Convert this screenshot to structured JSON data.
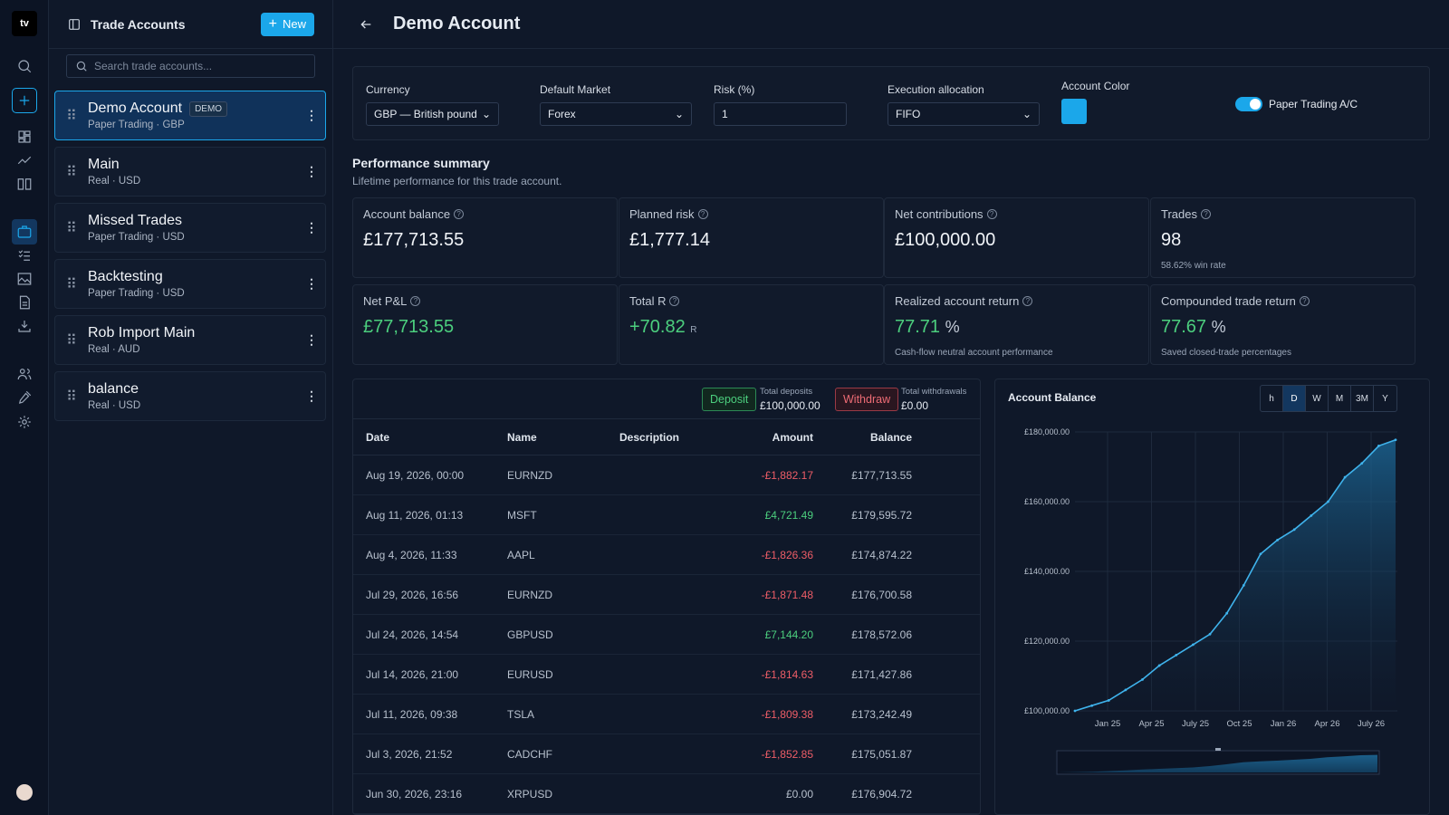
{
  "sidebar": {
    "title": "Trade Accounts",
    "new_label": "New",
    "search_placeholder": "Search trade accounts...",
    "accounts": [
      {
        "name": "Demo Account",
        "badge": "DEMO",
        "sub": "Paper Trading · GBP"
      },
      {
        "name": "Main",
        "sub": "Real · USD"
      },
      {
        "name": "Missed Trades",
        "sub": "Paper Trading · USD"
      },
      {
        "name": "Backtesting",
        "sub": "Paper Trading · USD"
      },
      {
        "name": "Rob Import Main",
        "sub": "Real · AUD"
      },
      {
        "name": "balance",
        "sub": "Real · USD"
      }
    ]
  },
  "header": {
    "title": "Demo Account"
  },
  "settings": {
    "currency_label": "Currency",
    "currency_value": "GBP — British pound",
    "market_label": "Default Market",
    "market_value": "Forex",
    "risk_label": "Risk (%)",
    "risk_value": "1",
    "exec_label": "Execution allocation",
    "exec_value": "FIFO",
    "color_label": "Account Color",
    "color": "#1ba7ea",
    "paper_label": "Paper Trading A/C",
    "paper_on": true
  },
  "performance": {
    "title": "Performance summary",
    "subtitle": "Lifetime performance for this trade account.",
    "cards": [
      {
        "label": "Account balance",
        "value": "£177,713.55"
      },
      {
        "label": "Planned risk",
        "value": "£1,777.14"
      },
      {
        "label": "Net contributions",
        "value": "£100,000.00"
      },
      {
        "label": "Trades",
        "value": "98",
        "note": "58.62% win rate"
      },
      {
        "label": "Net P&L",
        "value": "£77,713.55"
      },
      {
        "label": "Total R",
        "value": "+70.82",
        "unit": "R"
      },
      {
        "label": "Realized account return",
        "value": "77.71",
        "unit": "%",
        "note": "Cash-flow neutral account performance"
      },
      {
        "label": "Compounded trade return",
        "value": "77.67",
        "unit": "%",
        "note": "Saved closed-trade percentages"
      }
    ]
  },
  "transactions": {
    "deposit_label": "Deposit",
    "total_deposits_label": "Total deposits",
    "total_deposits": "£100,000.00",
    "withdraw_label": "Withdraw",
    "total_withdrawals_label": "Total withdrawals",
    "total_withdrawals": "£0.00",
    "headers": [
      "Date",
      "Name",
      "Description",
      "Amount",
      "Balance"
    ],
    "rows": [
      {
        "date": "Aug 19, 2026, 00:00",
        "name": "EURNZD",
        "desc": "",
        "amount": "-£1,882.17",
        "balance": "£177,713.55",
        "sign": "neg"
      },
      {
        "date": "Aug 11, 2026, 01:13",
        "name": "MSFT",
        "desc": "",
        "amount": "£4,721.49",
        "balance": "£179,595.72",
        "sign": "pos"
      },
      {
        "date": "Aug 4, 2026, 11:33",
        "name": "AAPL",
        "desc": "",
        "amount": "-£1,826.36",
        "balance": "£174,874.22",
        "sign": "neg"
      },
      {
        "date": "Jul 29, 2026, 16:56",
        "name": "EURNZD",
        "desc": "",
        "amount": "-£1,871.48",
        "balance": "£176,700.58",
        "sign": "neg"
      },
      {
        "date": "Jul 24, 2026, 14:54",
        "name": "GBPUSD",
        "desc": "",
        "amount": "£7,144.20",
        "balance": "£178,572.06",
        "sign": "pos"
      },
      {
        "date": "Jul 14, 2026, 21:00",
        "name": "EURUSD",
        "desc": "",
        "amount": "-£1,814.63",
        "balance": "£171,427.86",
        "sign": "neg"
      },
      {
        "date": "Jul 11, 2026, 09:38",
        "name": "TSLA",
        "desc": "",
        "amount": "-£1,809.38",
        "balance": "£173,242.49",
        "sign": "neg"
      },
      {
        "date": "Jul 3, 2026, 21:52",
        "name": "CADCHF",
        "desc": "",
        "amount": "-£1,852.85",
        "balance": "£175,051.87",
        "sign": "neg"
      },
      {
        "date": "Jun 30, 2026, 23:16",
        "name": "XRPUSD",
        "desc": "",
        "amount": "£0.00",
        "balance": "£176,904.72",
        "sign": "zero"
      }
    ]
  },
  "chart_panel": {
    "title": "Account Balance",
    "timeframes": [
      "h",
      "D",
      "W",
      "M",
      "3M",
      "Y"
    ],
    "active_timeframe": "D"
  },
  "chart_data": {
    "type": "area",
    "title": "Account Balance",
    "xlabel": "",
    "ylabel": "",
    "x_ticks": [
      "Jan 25",
      "Apr 25",
      "July 25",
      "Oct 25",
      "Jan 26",
      "Apr 26",
      "July 26"
    ],
    "y_ticks": [
      "£100,000.00",
      "£120,000.00",
      "£140,000.00",
      "£160,000.00",
      "£180,000.00"
    ],
    "ylim": [
      100000,
      180000
    ],
    "grid": true,
    "series": [
      {
        "x": [
          "Jan 2025",
          "Feb 2025",
          "Mar 2025",
          "Apr 2025",
          "May 2025",
          "Jun 2025",
          "Jul 2025",
          "Aug 2025",
          "Sep 2025",
          "Oct 2025",
          "Nov 2025",
          "Dec 2025",
          "Jan 2026",
          "Feb 2026",
          "Mar 2026",
          "Apr 2026",
          "May 2026",
          "Jun 2026",
          "Jul 2026",
          "Aug 2026"
        ],
        "values": [
          100000,
          101500,
          103000,
          106000,
          109000,
          113000,
          116000,
          119000,
          122000,
          128000,
          136000,
          145000,
          149000,
          152000,
          156000,
          160000,
          167000,
          171000,
          176000,
          177713.55
        ]
      }
    ],
    "color": "#3fb3ec"
  }
}
